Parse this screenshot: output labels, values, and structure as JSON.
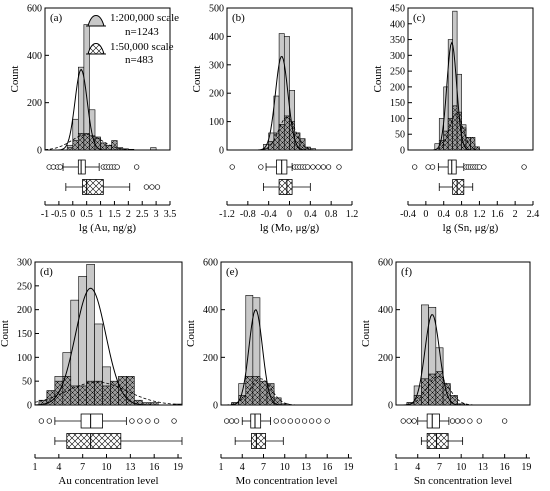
{
  "colors": {
    "bar_fill_200k": "#c8c8c8",
    "bar_fill_50k": "#9a9a9a",
    "stroke": "#000000",
    "background": "#ffffff"
  },
  "legend": {
    "entries": [
      {
        "label": "1:200,000 scale",
        "count": "n=1243"
      },
      {
        "label": "1:50,000 scale",
        "count": "n=483"
      }
    ]
  },
  "chart_data": [
    {
      "type": "bar",
      "panel": "(a)",
      "xlabel": "lg (Au, ng/g)",
      "ylabel": "Count",
      "xlim": [
        -1,
        3.5
      ],
      "ylim": [
        0,
        600
      ],
      "xticks": [
        "-1",
        "-0.5",
        "0",
        "0.5",
        "1",
        "1.5",
        "2",
        "2.5",
        "3",
        "3.5"
      ],
      "yticks": [
        "0",
        "200",
        "400",
        "600"
      ],
      "bin_start": -0.2,
      "bin_width": 0.2,
      "series": [
        {
          "name": "1:200,000 scale",
          "values": [
            20,
            130,
            350,
            530,
            170,
            55,
            30,
            20,
            15,
            8,
            5,
            3,
            0,
            0,
            0,
            10
          ]
        },
        {
          "name": "1:50,000 scale",
          "values": [
            10,
            40,
            70,
            70,
            60,
            50,
            30,
            20,
            40,
            10,
            5,
            0,
            0,
            0,
            0,
            0
          ]
        }
      ],
      "curves": [
        {
          "mean": 0.3,
          "sd": 0.22,
          "peak": 340
        },
        {
          "mean": 0.5,
          "sd": 0.55,
          "peak": 65
        }
      ],
      "boxplots": [
        {
          "whisker_low": -0.35,
          "q1": 0.2,
          "median": 0.3,
          "q3": 0.45,
          "whisker_high": 0.95,
          "outliers": [
            -0.85,
            -0.7,
            -0.55,
            -0.45,
            1.1,
            1.2,
            1.3,
            1.4,
            1.5,
            1.6,
            2.3
          ]
        },
        {
          "whisker_low": -0.25,
          "q1": 0.35,
          "median": 0.5,
          "q3": 1.1,
          "whisker_high": 2.05,
          "outliers": [
            2.65,
            2.85,
            3.05
          ]
        }
      ]
    },
    {
      "type": "bar",
      "panel": "(b)",
      "xlabel": "lg (Mo, μg/g)",
      "ylabel": "Count",
      "xlim": [
        -1.2,
        1.2
      ],
      "ylim": [
        0,
        500
      ],
      "xticks": [
        "-1.2",
        "-0.8",
        "-0.4",
        "0",
        "0.4",
        "0.8",
        "1.2"
      ],
      "yticks": [
        "0",
        "100",
        "200",
        "300",
        "400",
        "500"
      ],
      "bin_start": -0.5,
      "bin_width": 0.1,
      "series": [
        {
          "name": "1:200,000 scale",
          "values": [
            20,
            60,
            190,
            410,
            400,
            210,
            60,
            20,
            10,
            5
          ]
        },
        {
          "name": "1:50,000 scale",
          "values": [
            5,
            30,
            60,
            90,
            120,
            100,
            60,
            40,
            10,
            0
          ]
        }
      ],
      "curves": [
        {
          "mean": -0.15,
          "sd": 0.12,
          "peak": 330
        },
        {
          "mean": -0.05,
          "sd": 0.16,
          "peak": 115
        }
      ],
      "boxplots": [
        {
          "whisker_low": -0.45,
          "q1": -0.25,
          "median": -0.15,
          "q3": -0.05,
          "whisker_high": 0.05,
          "outliers": [
            -1.1,
            -0.55,
            0.1,
            0.15,
            0.2,
            0.25,
            0.3,
            0.35,
            0.45,
            0.55,
            0.65,
            0.75,
            0.95
          ]
        },
        {
          "whisker_low": -0.5,
          "q1": -0.2,
          "median": -0.05,
          "q3": 0.05,
          "whisker_high": 0.4,
          "outliers": []
        }
      ]
    },
    {
      "type": "bar",
      "panel": "(c)",
      "xlabel": "lg (Sn, μg/g)",
      "ylabel": "Count",
      "xlim": [
        -0.4,
        2.4
      ],
      "ylim": [
        0,
        450
      ],
      "xticks": [
        "-0.4",
        "0",
        "0.4",
        "0.8",
        "1.2",
        "1.6",
        "2",
        "2.4"
      ],
      "yticks": [
        "0",
        "50",
        "100",
        "150",
        "200",
        "250",
        "300",
        "350",
        "400",
        "450"
      ],
      "bin_start": 0.2,
      "bin_width": 0.1,
      "series": [
        {
          "name": "1:200,000 scale",
          "values": [
            20,
            100,
            200,
            350,
            440,
            240,
            80,
            40,
            20,
            5
          ]
        },
        {
          "name": "1:50,000 scale",
          "values": [
            0,
            30,
            60,
            100,
            140,
            120,
            70,
            40,
            40,
            10
          ]
        }
      ],
      "curves": [
        {
          "mean": 0.58,
          "sd": 0.11,
          "peak": 340
        },
        {
          "mean": 0.68,
          "sd": 0.15,
          "peak": 115
        }
      ],
      "boxplots": [
        {
          "whisker_low": 0.28,
          "q1": 0.5,
          "median": 0.58,
          "q3": 0.68,
          "whisker_high": 0.85,
          "outliers": [
            -0.25,
            0.05,
            0.15,
            0.9,
            0.95,
            1.0,
            1.05,
            1.1,
            1.15,
            1.2,
            1.3,
            2.2
          ]
        },
        {
          "whisker_low": 0.3,
          "q1": 0.6,
          "median": 0.7,
          "q3": 0.85,
          "whisker_high": 1.05,
          "outliers": []
        }
      ]
    },
    {
      "type": "bar",
      "panel": "(d)",
      "xlabel": "Au concentration level",
      "ylabel": "Count",
      "xlim": [
        1,
        19.5
      ],
      "ylim": [
        0,
        300
      ],
      "xticks": [
        "1",
        "4",
        "7",
        "10",
        "13",
        "16",
        "19"
      ],
      "yticks": [
        "0",
        "50",
        "100",
        "150",
        "200",
        "250",
        "300"
      ],
      "bin_start": 1.5,
      "bin_width": 1,
      "series": [
        {
          "name": "1:200,000 scale",
          "values": [
            5,
            30,
            60,
            110,
            220,
            270,
            295,
            170,
            80,
            40,
            20,
            10,
            5,
            3,
            2,
            0,
            0,
            2
          ]
        },
        {
          "name": "1:50,000 scale",
          "values": [
            10,
            30,
            50,
            60,
            40,
            40,
            50,
            50,
            40,
            50,
            60,
            60,
            10,
            5,
            5,
            0,
            0,
            0
          ]
        }
      ],
      "curves": [
        {
          "mean": 8,
          "sd": 1.9,
          "peak": 245
        },
        {
          "mean": 8.8,
          "sd": 3.8,
          "peak": 48
        }
      ],
      "boxplots": [
        {
          "whisker_low": 3.5,
          "q1": 6.8,
          "median": 8,
          "q3": 9.5,
          "whisker_high": 12.5,
          "outliers": [
            1.8,
            2.8,
            13.2,
            14.2,
            15.2,
            16.3,
            18.5
          ]
        },
        {
          "whisker_low": 3.5,
          "q1": 5,
          "median": 8,
          "q3": 11.8,
          "whisker_high": 19.5,
          "outliers": []
        }
      ]
    },
    {
      "type": "bar",
      "panel": "(e)",
      "xlabel": "Mo concentration level",
      "ylabel": "Count",
      "xlim": [
        1,
        19.5
      ],
      "ylim": [
        0,
        600
      ],
      "xticks": [
        "1",
        "4",
        "7",
        "10",
        "13",
        "16",
        "19"
      ],
      "yticks": [
        "0",
        "200",
        "400",
        "600"
      ],
      "bin_start": 2.5,
      "bin_width": 1,
      "series": [
        {
          "name": "1:200,000 scale",
          "values": [
            10,
            90,
            460,
            450,
            90,
            60,
            20,
            5
          ]
        },
        {
          "name": "1:50,000 scale",
          "values": [
            10,
            40,
            120,
            120,
            100,
            90,
            30,
            5
          ]
        }
      ],
      "curves": [
        {
          "mean": 5.9,
          "sd": 0.95,
          "peak": 400
        },
        {
          "mean": 6.6,
          "sd": 1.5,
          "peak": 110
        }
      ],
      "boxplots": [
        {
          "whisker_low": 4,
          "q1": 5.2,
          "median": 5.8,
          "q3": 6.6,
          "whisker_high": 8,
          "outliers": [
            1.8,
            2.5,
            3.2,
            8.8,
            9.8,
            10.8,
            11.8,
            12.8,
            13.8,
            14.8,
            16
          ]
        },
        {
          "whisker_low": 3,
          "q1": 5.3,
          "median": 6,
          "q3": 7.3,
          "whisker_high": 9.8,
          "outliers": []
        }
      ]
    },
    {
      "type": "bar",
      "panel": "(f)",
      "xlabel": "Sn concentration level",
      "ylabel": "Count",
      "xlim": [
        1,
        19.5
      ],
      "ylim": [
        0,
        600
      ],
      "xticks": [
        "1",
        "4",
        "7",
        "10",
        "13",
        "16",
        "19"
      ],
      "yticks": [
        "0",
        "200",
        "400",
        "600"
      ],
      "bin_start": 2.5,
      "bin_width": 1,
      "series": [
        {
          "name": "1:200,000 scale",
          "values": [
            10,
            80,
            420,
            410,
            240,
            80,
            20,
            5
          ]
        },
        {
          "name": "1:50,000 scale",
          "values": [
            10,
            40,
            110,
            130,
            140,
            90,
            40,
            5
          ]
        }
      ],
      "curves": [
        {
          "mean": 6,
          "sd": 1,
          "peak": 380
        },
        {
          "mean": 6.8,
          "sd": 1.5,
          "peak": 120
        }
      ],
      "boxplots": [
        {
          "whisker_low": 4,
          "q1": 5.3,
          "median": 6,
          "q3": 7,
          "whisker_high": 8.3,
          "outliers": [
            2,
            2.8,
            3.5,
            8.8,
            9.5,
            10.2,
            11.2,
            12.5,
            16
          ]
        },
        {
          "whisker_low": 4.5,
          "q1": 5.3,
          "median": 6.6,
          "q3": 8.2,
          "whisker_high": 10.2,
          "outliers": []
        }
      ]
    }
  ]
}
